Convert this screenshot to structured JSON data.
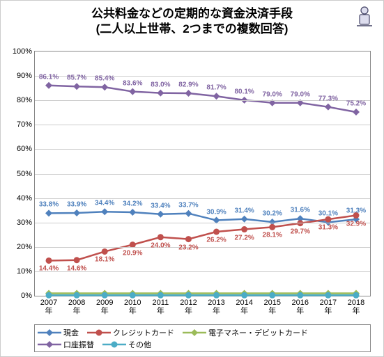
{
  "chart": {
    "type": "line",
    "title_line1": "公共料金などの定期的な資金決済手段",
    "title_line2": "(二人以上世帯、2つまでの複数回答)",
    "title_fontsize": 17,
    "icon": "↯",
    "ylim": [
      0,
      100
    ],
    "ytick_step": 10,
    "ylabel_suffix": "%",
    "grid_color": "#cccccc",
    "border_color": "#888888",
    "background_color": "#ffffff",
    "categories": [
      "2007年",
      "2008年",
      "2009年",
      "2010年",
      "2011年",
      "2012年",
      "2013年",
      "2014年",
      "2015年",
      "2016年",
      "2017年",
      "2018年"
    ],
    "series": [
      {
        "name": "現金",
        "color": "#4f81bd",
        "marker": "diamond",
        "label_above": true,
        "values": [
          33.8,
          33.9,
          34.4,
          34.2,
          33.4,
          33.7,
          30.9,
          31.4,
          30.2,
          31.6,
          30.1,
          31.3
        ]
      },
      {
        "name": "クレジットカード",
        "color": "#c0504d",
        "marker": "circle",
        "label_above": false,
        "values": [
          14.4,
          14.6,
          18.1,
          20.9,
          24.0,
          23.2,
          26.2,
          27.2,
          28.1,
          29.7,
          31.3,
          32.9
        ]
      },
      {
        "name": "電子マネー・デビットカード",
        "color": "#9bbb59",
        "marker": "diamond",
        "label_above": true,
        "hide_labels": true,
        "values": [
          1.0,
          1.0,
          1.0,
          1.0,
          1.0,
          1.0,
          1.0,
          1.0,
          1.0,
          1.0,
          1.0,
          1.0
        ]
      },
      {
        "name": "口座振替",
        "color": "#8064a2",
        "marker": "diamond",
        "label_above": true,
        "values": [
          86.1,
          85.7,
          85.4,
          83.6,
          83.0,
          82.9,
          81.7,
          80.1,
          79.0,
          79.0,
          77.3,
          75.2
        ]
      },
      {
        "name": "その他",
        "color": "#4bacc6",
        "marker": "circle",
        "label_above": true,
        "hide_labels": true,
        "values": [
          0.2,
          0.2,
          0.2,
          0.2,
          0.2,
          0.2,
          0.2,
          0.2,
          0.2,
          0.2,
          0.2,
          0.2
        ]
      }
    ]
  }
}
